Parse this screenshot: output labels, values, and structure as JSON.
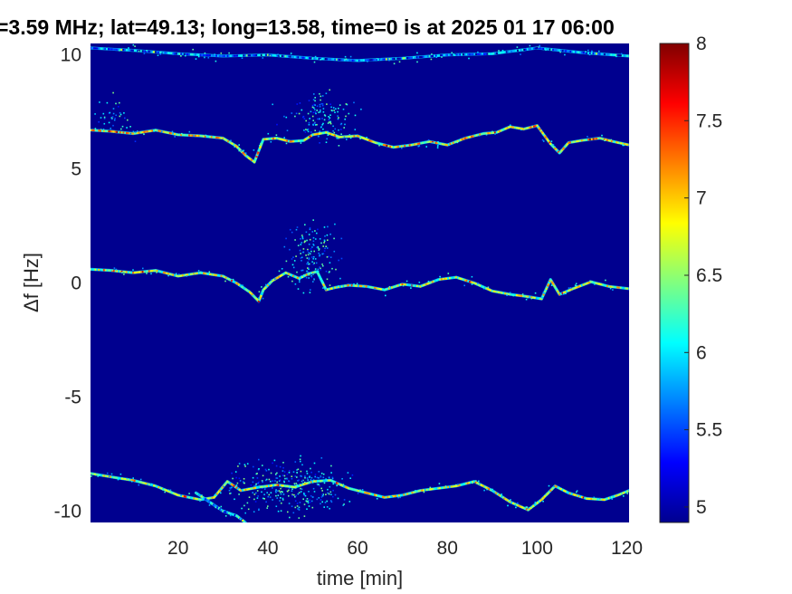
{
  "chart_data": {
    "type": "heatmap",
    "title": "=3.59 MHz;  lat=49.13; long=13.58, time=0 is at 2025 01 17 06:00",
    "xlabel": "time [min]",
    "ylabel": "Δf [Hz]",
    "xlim": [
      0.5,
      120.5
    ],
    "ylim": [
      -10.5,
      10.5
    ],
    "x_ticks": [
      20,
      40,
      60,
      80,
      100,
      120
    ],
    "x_tick_labels": [
      "20",
      "40",
      "60",
      "80",
      "100",
      "120"
    ],
    "y_ticks": [
      -10,
      -5,
      0,
      5,
      10
    ],
    "y_tick_labels": [
      "-10",
      "-5",
      "0",
      "5",
      "10"
    ],
    "colormap": "jet",
    "background_color": "#00008f",
    "colorbar": {
      "clim": [
        4.9,
        8.0
      ],
      "ticks": [
        5,
        5.5,
        6,
        6.5,
        7,
        7.5,
        8
      ],
      "tick_labels": [
        "5",
        "5.5",
        "6",
        "6.5",
        "7",
        "7.5",
        "8"
      ]
    },
    "traces": [
      {
        "points": [
          [
            0.5,
            6.7
          ],
          [
            5,
            6.65
          ],
          [
            10,
            6.55
          ],
          [
            15,
            6.7
          ],
          [
            20,
            6.5
          ],
          [
            25,
            6.45
          ],
          [
            30,
            6.35
          ],
          [
            33,
            6.0
          ],
          [
            35,
            5.6
          ],
          [
            37,
            5.3
          ],
          [
            38,
            5.8
          ],
          [
            39,
            6.3
          ],
          [
            42,
            6.35
          ],
          [
            45,
            6.2
          ],
          [
            48,
            6.25
          ],
          [
            50,
            6.5
          ],
          [
            53,
            6.6
          ],
          [
            56,
            6.4
          ],
          [
            60,
            6.45
          ],
          [
            64,
            6.15
          ],
          [
            68,
            5.95
          ],
          [
            72,
            6.05
          ],
          [
            76,
            6.2
          ],
          [
            80,
            6.05
          ],
          [
            84,
            6.35
          ],
          [
            88,
            6.55
          ],
          [
            91,
            6.6
          ],
          [
            94,
            6.85
          ],
          [
            97,
            6.75
          ],
          [
            100,
            6.9
          ],
          [
            103,
            6.1
          ],
          [
            105,
            5.7
          ],
          [
            107,
            6.15
          ],
          [
            110,
            6.25
          ],
          [
            114,
            6.35
          ],
          [
            117,
            6.2
          ],
          [
            120.5,
            6.05
          ]
        ],
        "intensity": 7.0
      },
      {
        "points": [
          [
            0.5,
            0.6
          ],
          [
            5,
            0.55
          ],
          [
            10,
            0.45
          ],
          [
            15,
            0.55
          ],
          [
            20,
            0.3
          ],
          [
            25,
            0.45
          ],
          [
            30,
            0.3
          ],
          [
            33,
            0.0
          ],
          [
            36,
            -0.4
          ],
          [
            38,
            -0.8
          ],
          [
            39,
            -0.3
          ],
          [
            41,
            0.1
          ],
          [
            44,
            0.45
          ],
          [
            47,
            0.2
          ],
          [
            49,
            0.4
          ],
          [
            51,
            0.5
          ],
          [
            53,
            -0.3
          ],
          [
            55,
            -0.2
          ],
          [
            58,
            -0.1
          ],
          [
            62,
            -0.15
          ],
          [
            66,
            -0.3
          ],
          [
            70,
            -0.05
          ],
          [
            74,
            -0.15
          ],
          [
            78,
            0.15
          ],
          [
            82,
            0.25
          ],
          [
            86,
            0.0
          ],
          [
            90,
            -0.35
          ],
          [
            94,
            -0.5
          ],
          [
            98,
            -0.6
          ],
          [
            101,
            -0.7
          ],
          [
            103,
            0.15
          ],
          [
            105,
            -0.5
          ],
          [
            108,
            -0.25
          ],
          [
            112,
            0.05
          ],
          [
            116,
            -0.15
          ],
          [
            120.5,
            -0.25
          ]
        ],
        "intensity": 6.8
      },
      {
        "points": [
          [
            0.5,
            -8.35
          ],
          [
            5,
            -8.5
          ],
          [
            10,
            -8.65
          ],
          [
            15,
            -8.9
          ],
          [
            20,
            -9.3
          ],
          [
            25,
            -9.5
          ],
          [
            28,
            -9.4
          ],
          [
            31,
            -8.7
          ],
          [
            34,
            -9.1
          ],
          [
            38,
            -8.95
          ],
          [
            42,
            -8.85
          ],
          [
            46,
            -8.95
          ],
          [
            50,
            -8.7
          ],
          [
            54,
            -8.65
          ],
          [
            58,
            -9.0
          ],
          [
            62,
            -9.2
          ],
          [
            66,
            -9.4
          ],
          [
            70,
            -9.3
          ],
          [
            74,
            -9.1
          ],
          [
            78,
            -9.0
          ],
          [
            82,
            -8.9
          ],
          [
            86,
            -8.7
          ],
          [
            90,
            -9.1
          ],
          [
            94,
            -9.6
          ],
          [
            98,
            -9.95
          ],
          [
            101,
            -9.5
          ],
          [
            104,
            -8.9
          ],
          [
            107,
            -9.2
          ],
          [
            111,
            -9.45
          ],
          [
            115,
            -9.5
          ],
          [
            118,
            -9.3
          ],
          [
            120.5,
            -9.1
          ]
        ],
        "intensity": 6.8
      },
      {
        "points": [
          [
            24,
            -9.2
          ],
          [
            27,
            -9.6
          ],
          [
            30,
            -10.0
          ],
          [
            33,
            -10.2
          ],
          [
            35,
            -10.5
          ]
        ],
        "intensity": 6.0
      },
      {
        "points": [
          [
            0.5,
            10.3
          ],
          [
            10,
            10.2
          ],
          [
            20,
            10.05
          ],
          [
            30,
            9.95
          ],
          [
            40,
            10.0
          ],
          [
            50,
            9.85
          ],
          [
            60,
            9.75
          ],
          [
            70,
            9.85
          ],
          [
            80,
            10.0
          ],
          [
            90,
            10.05
          ],
          [
            100,
            10.3
          ],
          [
            110,
            10.1
          ],
          [
            120.5,
            9.95
          ]
        ],
        "intensity": 5.8
      }
    ],
    "clusters": [
      {
        "x": 52,
        "y": 7.3,
        "sx": 3.5,
        "sy": 0.55,
        "n": 140
      },
      {
        "x": 50,
        "y": 1.1,
        "sx": 3.0,
        "sy": 0.7,
        "n": 160
      },
      {
        "x": 45,
        "y": -8.9,
        "sx": 6.5,
        "sy": 0.55,
        "n": 320
      },
      {
        "x": 5,
        "y": 7.2,
        "sx": 3.0,
        "sy": 0.4,
        "n": 40
      }
    ]
  }
}
